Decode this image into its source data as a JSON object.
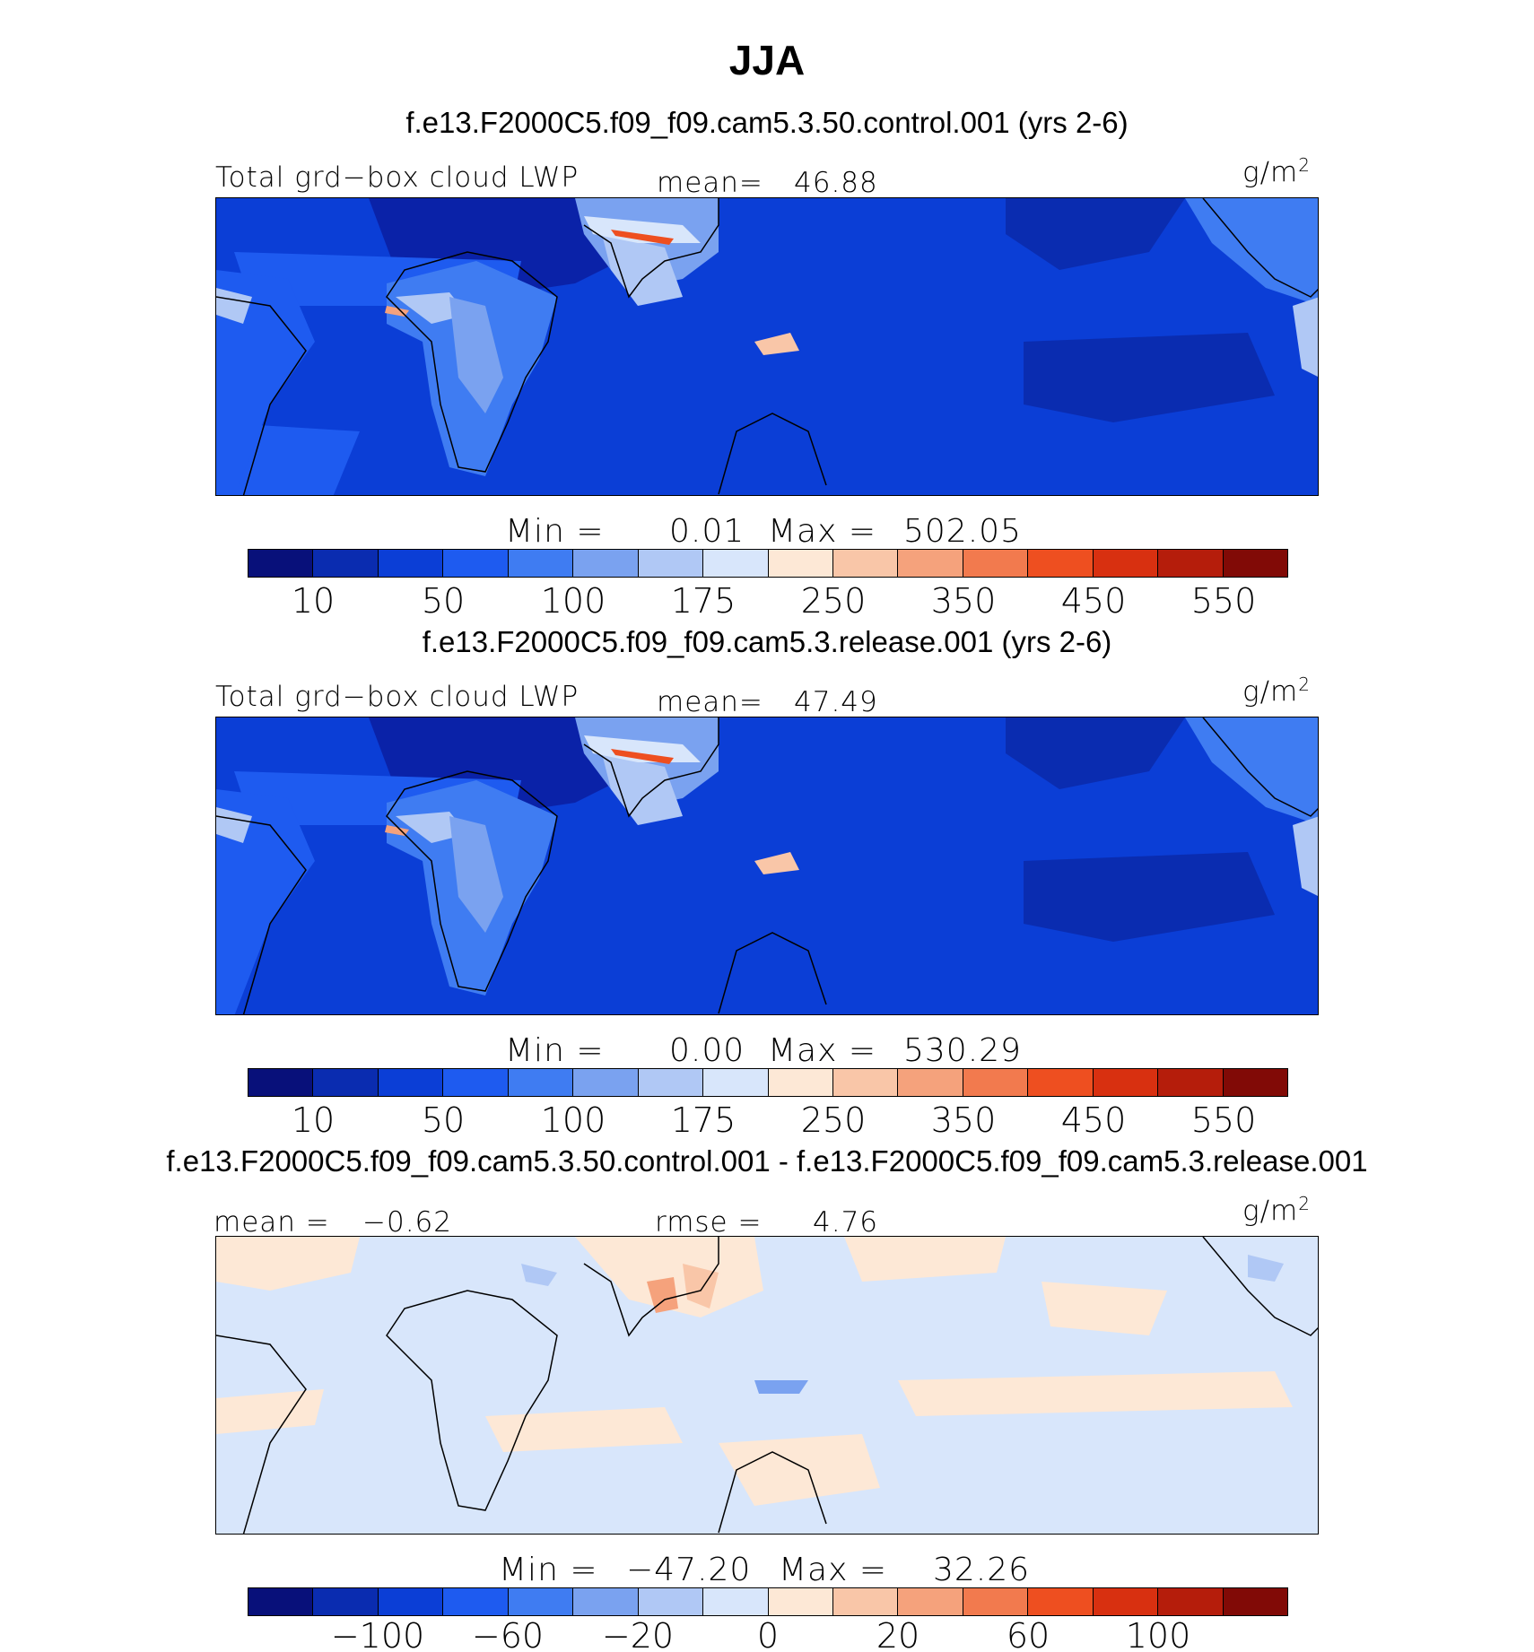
{
  "figure": {
    "title": "JJA"
  },
  "panels": [
    {
      "case_title": "f.e13.F2000C5.f09_f09.cam5.3.50.control.001 (yrs 2-6)",
      "variable": "Total grd−box cloud LWP",
      "mean_label": "mean=",
      "mean_value": "46.88",
      "unit": "g/m",
      "unit_exp": "2",
      "min_label": "Min =",
      "min_value": "0.01",
      "max_label": "Max =",
      "max_value": "502.05",
      "colorbar_ticks": [
        "10",
        "50",
        "100",
        "175",
        "250",
        "350",
        "450",
        "550"
      ]
    },
    {
      "case_title": "f.e13.F2000C5.f09_f09.cam5.3.release.001 (yrs 2-6)",
      "variable": "Total grd−box cloud LWP",
      "mean_label": "mean=",
      "mean_value": "47.49",
      "unit": "g/m",
      "unit_exp": "2",
      "min_label": "Min =",
      "min_value": "0.00",
      "max_label": "Max =",
      "max_value": "530.29",
      "colorbar_ticks": [
        "10",
        "50",
        "100",
        "175",
        "250",
        "350",
        "450",
        "550"
      ]
    },
    {
      "case_title": "f.e13.F2000C5.f09_f09.cam5.3.50.control.001 - f.e13.F2000C5.f09_f09.cam5.3.release.001",
      "mean_label": "mean =",
      "mean_value": "−0.62",
      "rmse_label": "rmse =",
      "rmse_value": "4.76",
      "unit": "g/m",
      "unit_exp": "2",
      "min_label": "Min =",
      "min_value": "−47.20",
      "max_label": "Max =",
      "max_value": "32.26",
      "colorbar_ticks": [
        "−100",
        "−60",
        "−20",
        "0",
        "20",
        "60",
        "100"
      ]
    }
  ],
  "colorbar_colors": [
    "#08107a",
    "#0a2cb0",
    "#0b3ed6",
    "#1e5bf0",
    "#3f7cf2",
    "#7aa2f0",
    "#b0c8f5",
    "#d8e6fb",
    "#fde8d6",
    "#f9c6a8",
    "#f5a27c",
    "#f27a4e",
    "#ee4f20",
    "#d83010",
    "#b51d0b",
    "#810a06"
  ],
  "map_colors": {
    "deep_blue": "#0b3ed6",
    "darkest_blue": "#0a22a8",
    "mid_blue": "#1e5bf0",
    "light_blue": "#7aa2f0",
    "pale_blue": "#d8e6fb",
    "pale_orange": "#fde8d6",
    "orange": "#f27a4e",
    "red": "#d83010"
  }
}
